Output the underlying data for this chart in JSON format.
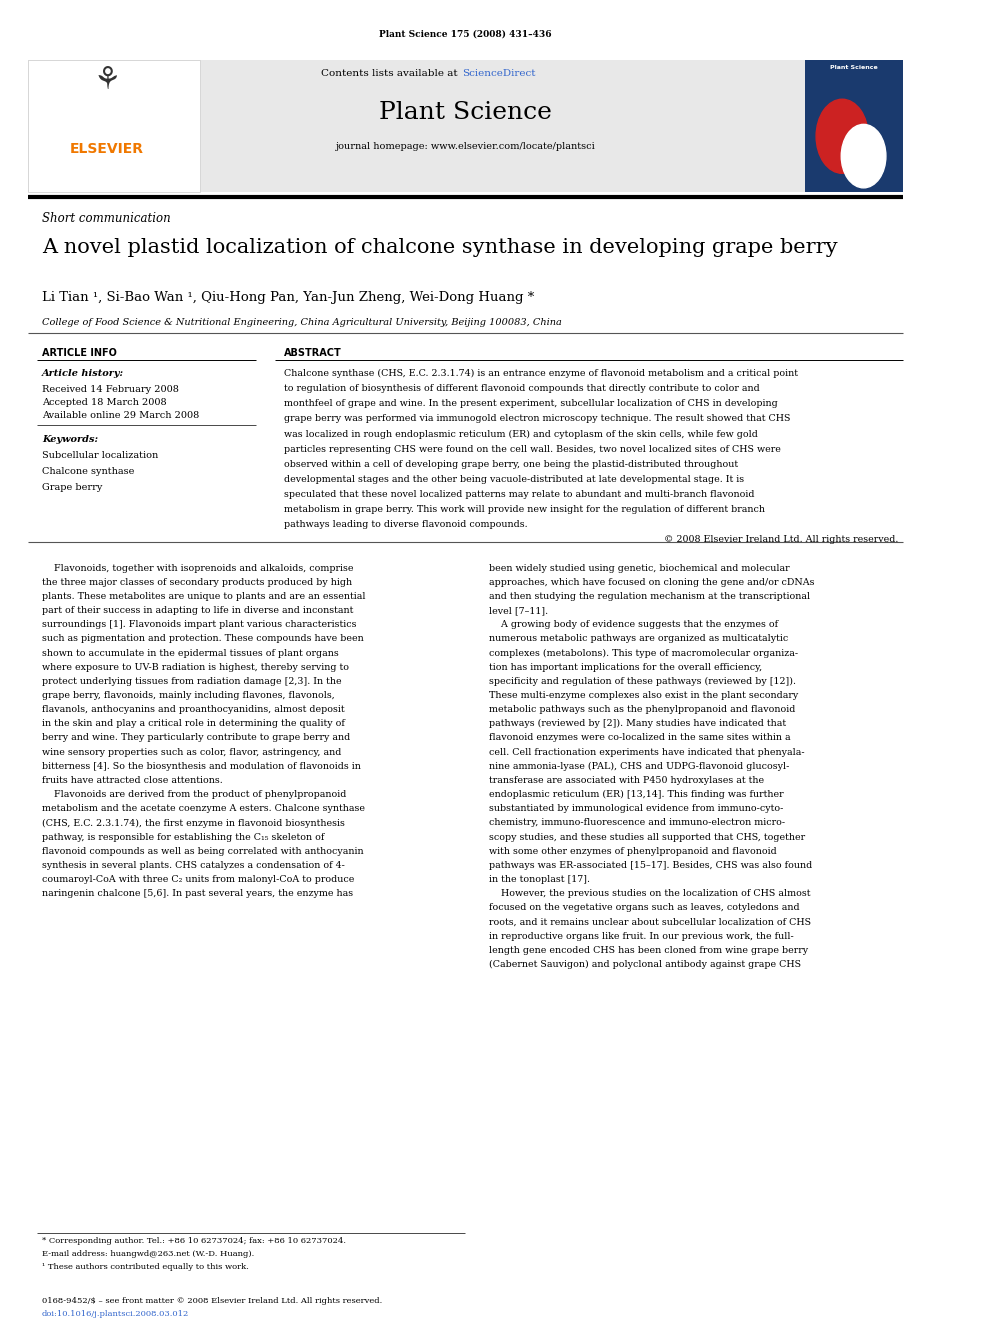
{
  "page_width": 9.92,
  "page_height": 13.23,
  "background_color": "#ffffff",
  "journal_citation": "Plant Science 175 (2008) 431–436",
  "header_bg": "#e8e8e8",
  "header_contents_text": "Contents lists available at ",
  "header_sciencedirect": "ScienceDirect",
  "header_journal": "Plant Science",
  "header_homepage": "journal homepage: www.elsevier.com/locate/plantsci",
  "elsevier_color": "#f07800",
  "sciencedirect_color": "#3366cc",
  "section_label": "Short communication",
  "article_title": "A novel plastid localization of chalcone synthase in developing grape berry",
  "authors": "Li Tian ¹, Si-Bao Wan ¹, Qiu-Hong Pan, Yan-Jun Zheng, Wei-Dong Huang *",
  "affiliation": "College of Food Science & Nutritional Engineering, China Agricultural University, Beijing 100083, China",
  "article_info_heading": "ARTICLE INFO",
  "abstract_heading": "ABSTRACT",
  "article_history_label": "Article history:",
  "received": "Received 14 February 2008",
  "accepted": "Accepted 18 March 2008",
  "available": "Available online 29 March 2008",
  "keywords_label": "Keywords:",
  "keywords": [
    "Subcellular localization",
    "Chalcone synthase",
    "Grape berry"
  ],
  "copyright_text": "© 2008 Elsevier Ireland Ltd. All rights reserved.",
  "footnote_star": "* Corresponding author. Tel.: +86 10 62737024; fax: +86 10 62737024.",
  "footnote_email": "E-mail address: huangwd@263.net (W.-D. Huang).",
  "footnote_1": "¹ These authors contributed equally to this work.",
  "bottom_line1": "0168-9452/$ – see front matter © 2008 Elsevier Ireland Ltd. All rights reserved.",
  "bottom_line2": "doi:10.1016/j.plantsci.2008.03.012"
}
